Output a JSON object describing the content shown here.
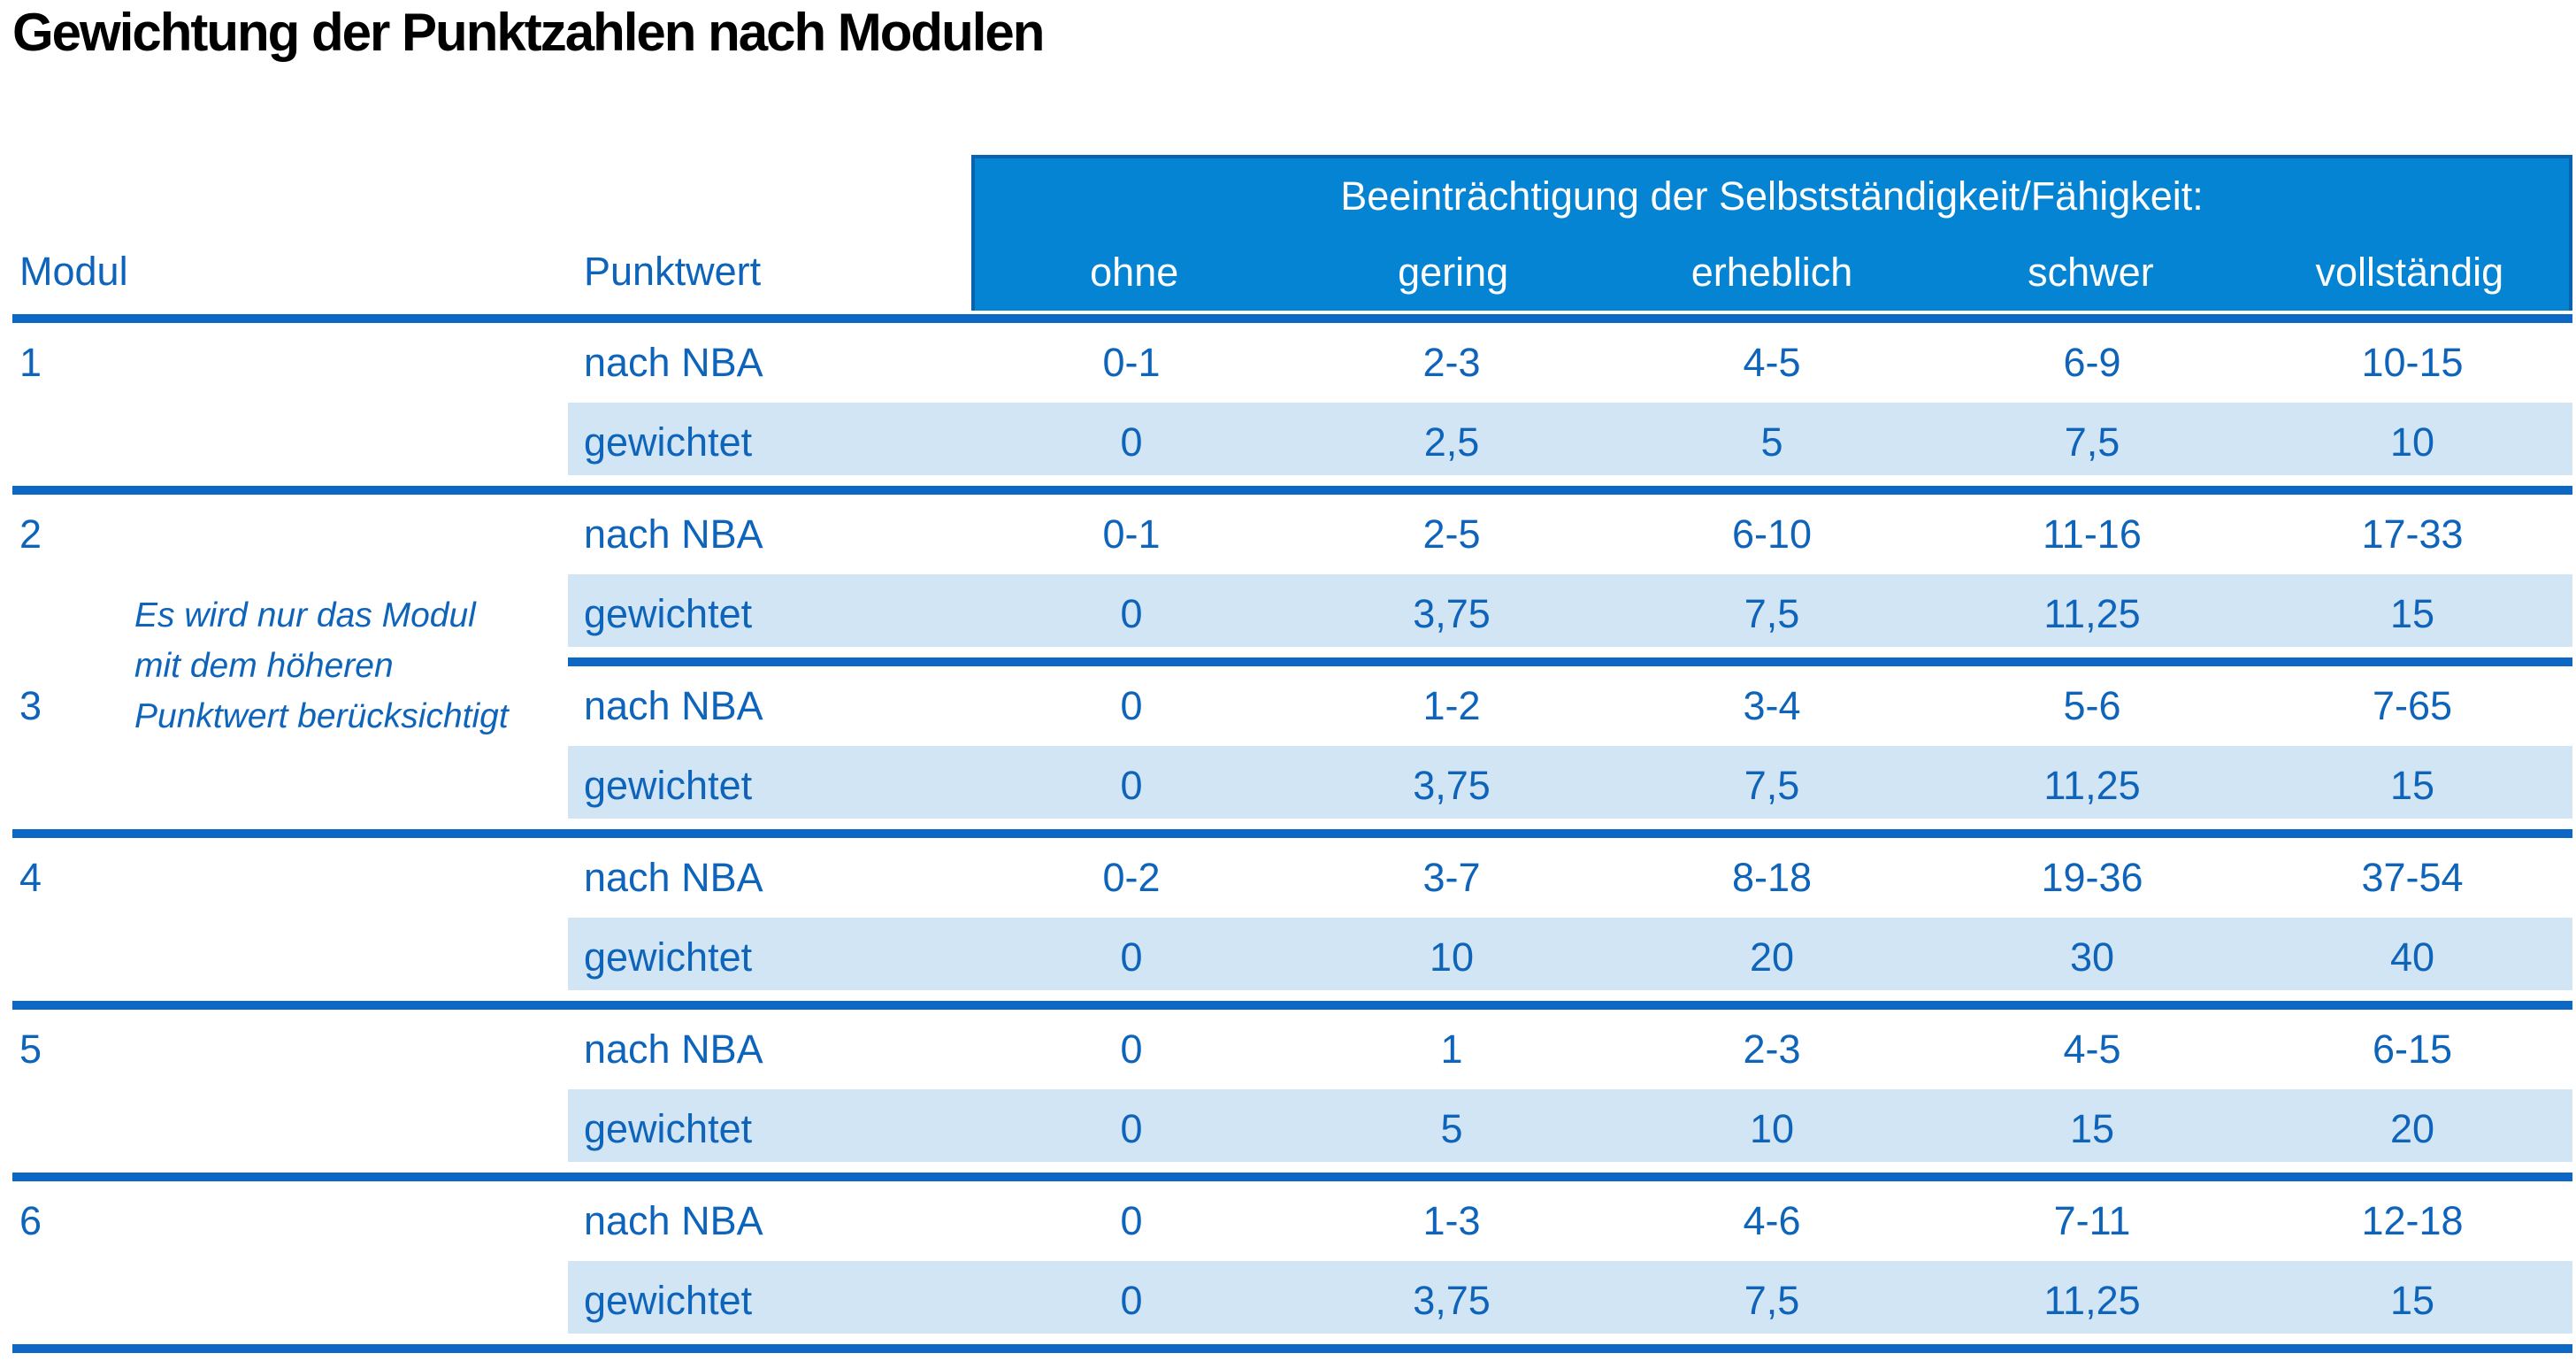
{
  "title": "Gewichtung der Punktzahlen nach Modulen",
  "table": {
    "header": {
      "impairment_label": "Beeinträchtigung der Selbstständigkeit/Fähigkeit:",
      "modul_label": "Modul",
      "punktwert_label": "Punktwert",
      "severity_levels": [
        "ohne",
        "gering",
        "erheblich",
        "schwer",
        "vollständig"
      ]
    },
    "labels": {
      "nba": "nach NBA",
      "weighted": "gewichtet"
    },
    "note": {
      "line1": "Es wird nur das Modul",
      "line2": "mit dem höheren",
      "line3": "Punktwert berücksichtigt"
    },
    "modules": [
      {
        "id": "1",
        "nba": [
          "0-1",
          "2-3",
          "4-5",
          "6-9",
          "10-15"
        ],
        "weighted": [
          "0",
          "2,5",
          "5",
          "7,5",
          "10"
        ]
      },
      {
        "id": "2",
        "nba": [
          "0-1",
          "2-5",
          "6-10",
          "11-16",
          "17-33"
        ],
        "weighted": [
          "0",
          "3,75",
          "7,5",
          "11,25",
          "15"
        ]
      },
      {
        "id": "3",
        "nba": [
          "0",
          "1-2",
          "3-4",
          "5-6",
          "7-65"
        ],
        "weighted": [
          "0",
          "3,75",
          "7,5",
          "11,25",
          "15"
        ]
      },
      {
        "id": "4",
        "nba": [
          "0-2",
          "3-7",
          "8-18",
          "19-36",
          "37-54"
        ],
        "weighted": [
          "0",
          "10",
          "20",
          "30",
          "40"
        ]
      },
      {
        "id": "5",
        "nba": [
          "0",
          "1",
          "2-3",
          "4-5",
          "6-15"
        ],
        "weighted": [
          "0",
          "5",
          "10",
          "15",
          "20"
        ]
      },
      {
        "id": "6",
        "nba": [
          "0",
          "1-3",
          "4-6",
          "7-11",
          "12-18"
        ],
        "weighted": [
          "0",
          "3,75",
          "7,5",
          "11,25",
          "15"
        ]
      }
    ],
    "colors": {
      "band_fill": "#0584d3",
      "band_border": "#0a63ae",
      "separator_blue": "#0c68c4",
      "text_blue": "#0e64ba",
      "weighted_row_bg": "#d2e5f4",
      "header_text": "#ffffff",
      "title_text": "#000000"
    }
  }
}
